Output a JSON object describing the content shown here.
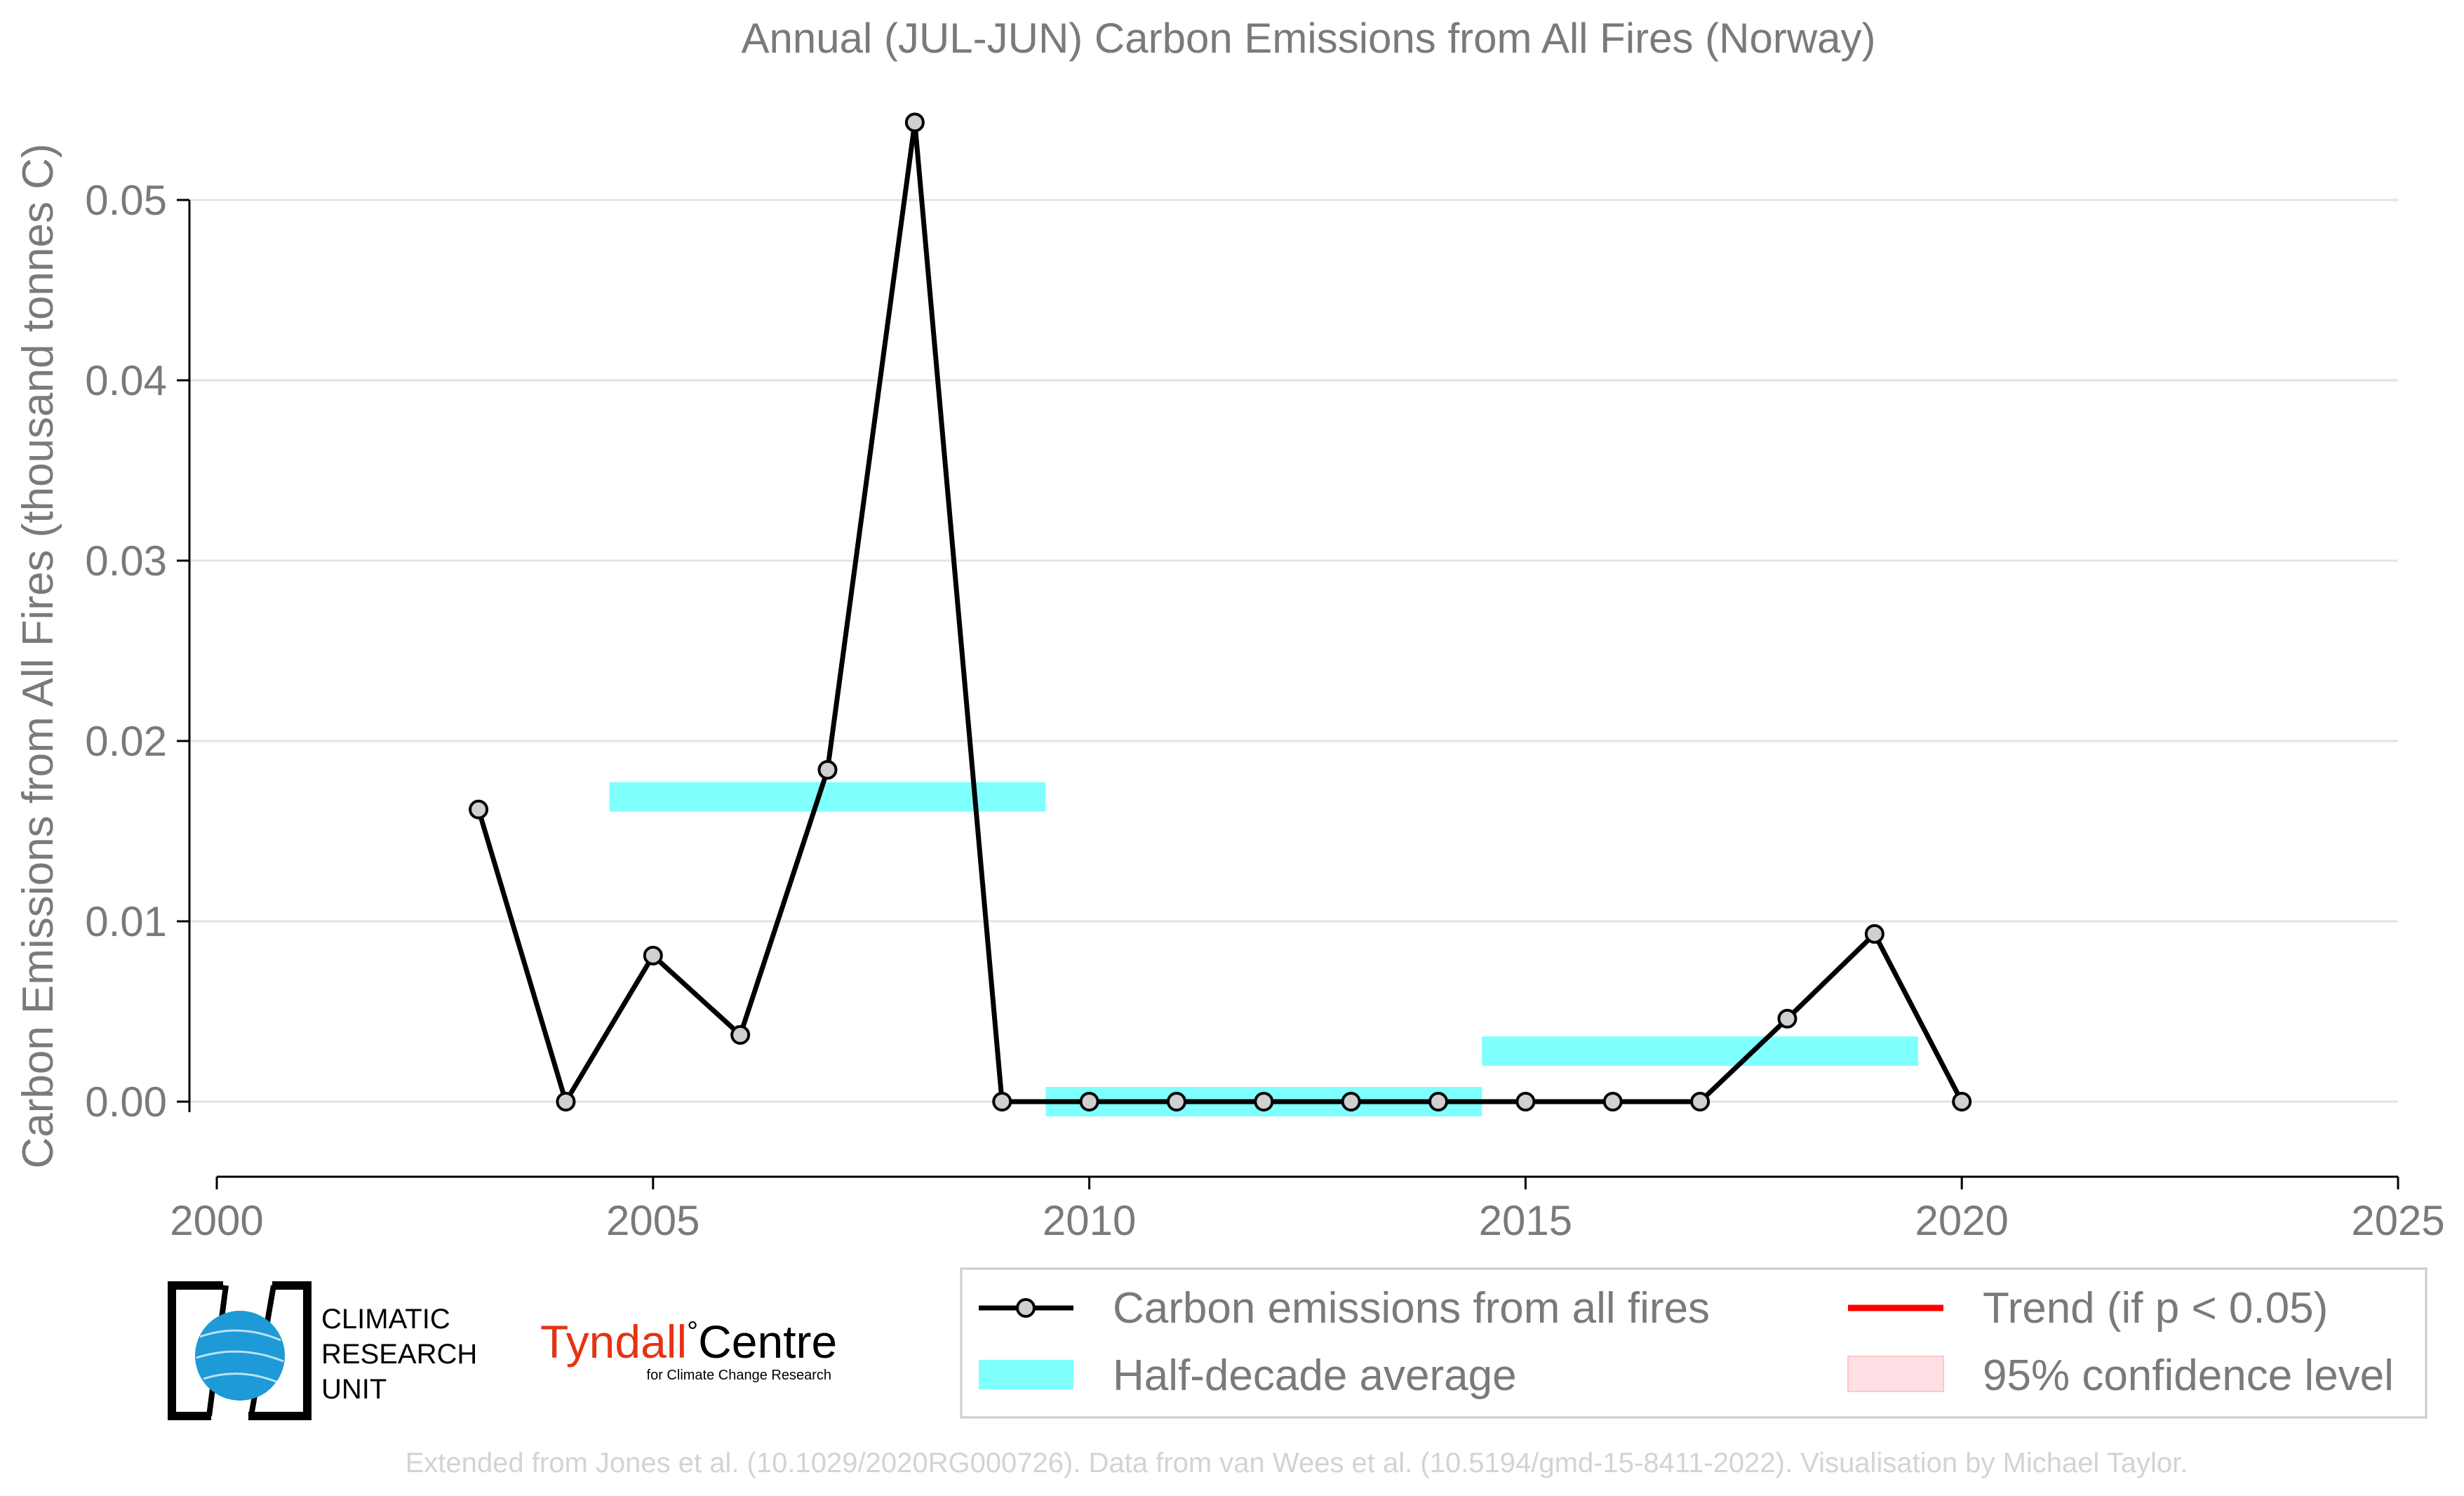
{
  "chart_data": {
    "type": "line",
    "title": "Annual (JUL-JUN) Carbon Emissions from All Fires (Norway)",
    "xlabel": "",
    "ylabel": "Carbon Emissions from All Fires (thousand tonnes C)",
    "xlim": [
      2000,
      2025
    ],
    "ylim": [
      -0.0042,
      0.0545
    ],
    "x_ticks": [
      2000,
      2005,
      2010,
      2015,
      2020,
      2025
    ],
    "x_tick_labels": [
      "2000",
      "2005",
      "2010",
      "2015",
      "2020",
      "2025"
    ],
    "y_ticks": [
      0.0,
      0.01,
      0.02,
      0.03,
      0.04,
      0.05
    ],
    "y_tick_labels": [
      "0.00",
      "0.01",
      "0.02",
      "0.03",
      "0.04",
      "0.05"
    ],
    "grid": "horizontal",
    "legend_position": "bottom-right",
    "series": [
      {
        "name": "Carbon emissions from all fires",
        "color": "#000000",
        "marker_fill": "#d0d0d0",
        "x": [
          2003,
          2004,
          2005,
          2006,
          2007,
          2008,
          2009,
          2010,
          2011,
          2012,
          2013,
          2014,
          2015,
          2016,
          2017,
          2018,
          2019,
          2020
        ],
        "y": [
          0.0162,
          0.0,
          0.0081,
          0.0037,
          0.0184,
          0.0543,
          0.0,
          0.0,
          0.0,
          0.0,
          0.0,
          0.0,
          0.0,
          0.0,
          0.0,
          0.0046,
          0.0093,
          0.0
        ]
      }
    ],
    "half_decade_averages": {
      "name": "Half-decade average",
      "color": "#80ffff",
      "segments": [
        {
          "x_start": 2004.5,
          "x_end": 2009.5,
          "y": 0.0169
        },
        {
          "x_start": 2009.5,
          "x_end": 2014.5,
          "y": 0.0
        },
        {
          "x_start": 2014.5,
          "x_end": 2019.5,
          "y": 0.0028
        }
      ]
    },
    "legend": [
      {
        "label": "Carbon emissions from all fires",
        "kind": "line-marker",
        "color": "#000000"
      },
      {
        "label": "Trend (if p < 0.05)",
        "kind": "line",
        "color": "#ff0000"
      },
      {
        "label": "Half-decade average",
        "kind": "band",
        "color": "#80ffff"
      },
      {
        "label": "95% confidence level",
        "kind": "patch",
        "color": "#ffe0e4"
      }
    ]
  },
  "logos": {
    "cru": [
      "CLIMATIC",
      "RESEARCH",
      "UNIT"
    ],
    "tyndall_main": "Tyndall",
    "tyndall_degree": "°",
    "tyndall_centre": "Centre",
    "tyndall_sub": "for Climate Change Research"
  },
  "credit": "Extended from Jones et al. (10.1029/2020RG000726). Data from van Wees et al. (10.5194/gmd-15-8411-2022). Visualisation by Michael Taylor."
}
